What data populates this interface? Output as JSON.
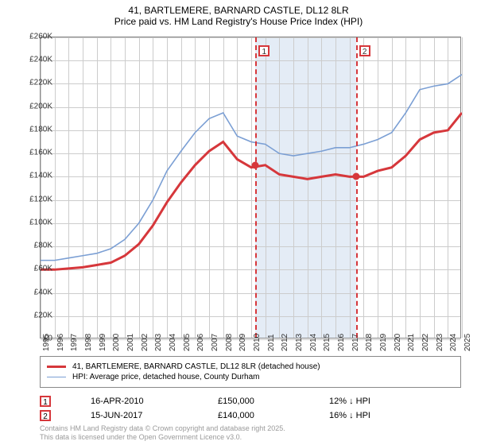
{
  "title_line1": "41, BARTLEMERE, BARNARD CASTLE, DL12 8LR",
  "title_line2": "Price paid vs. HM Land Registry's House Price Index (HPI)",
  "chart": {
    "type": "line",
    "background_color": "#ffffff",
    "grid_color": "#cccccc",
    "ylim": [
      0,
      260000
    ],
    "ytick_step": 20000,
    "ytick_labels": [
      "£0",
      "£20K",
      "£40K",
      "£60K",
      "£80K",
      "£100K",
      "£120K",
      "£140K",
      "£160K",
      "£180K",
      "£200K",
      "£220K",
      "£240K",
      "£260K"
    ],
    "x_years": [
      1995,
      1996,
      1997,
      1998,
      1999,
      2000,
      2001,
      2002,
      2003,
      2004,
      2005,
      2006,
      2007,
      2008,
      2009,
      2010,
      2011,
      2012,
      2013,
      2014,
      2015,
      2016,
      2017,
      2018,
      2019,
      2020,
      2021,
      2022,
      2023,
      2024,
      2025
    ],
    "series": [
      {
        "name": "41, BARTLEMERE, BARNARD CASTLE, DL12 8LR (detached house)",
        "color": "#d6373b",
        "line_width": 3,
        "values": [
          60000,
          60000,
          61000,
          62000,
          64000,
          66000,
          72000,
          82000,
          98000,
          118000,
          135000,
          150000,
          162000,
          170000,
          155000,
          148000,
          150000,
          142000,
          140000,
          138000,
          140000,
          142000,
          140000,
          140000,
          145000,
          148000,
          158000,
          172000,
          178000,
          180000,
          195000
        ]
      },
      {
        "name": "HPI: Average price, detached house, County Durham",
        "color": "#7b9fd4",
        "line_width": 1.6,
        "values": [
          68000,
          68000,
          70000,
          72000,
          74000,
          78000,
          86000,
          100000,
          120000,
          145000,
          162000,
          178000,
          190000,
          195000,
          175000,
          170000,
          168000,
          160000,
          158000,
          160000,
          162000,
          165000,
          165000,
          168000,
          172000,
          178000,
          195000,
          215000,
          218000,
          220000,
          228000
        ]
      }
    ],
    "marker_band": {
      "start_year": 2010.3,
      "end_year": 2017.45,
      "color": "#e4ecf6"
    },
    "sale_markers": [
      {
        "idx": "1",
        "year": 2010.3,
        "price": 150000
      },
      {
        "idx": "2",
        "year": 2017.45,
        "price": 140000
      }
    ]
  },
  "legend_property": "41, BARTLEMERE, BARNARD CASTLE, DL12 8LR (detached house)",
  "legend_hpi": "HPI: Average price, detached house, County Durham",
  "sales": [
    {
      "idx": "1",
      "date": "16-APR-2010",
      "price": "£150,000",
      "delta": "12% ↓ HPI"
    },
    {
      "idx": "2",
      "date": "15-JUN-2017",
      "price": "£140,000",
      "delta": "16% ↓ HPI"
    }
  ],
  "footer_line1": "Contains HM Land Registry data © Crown copyright and database right 2025.",
  "footer_line2": "This data is licensed under the Open Government Licence v3.0."
}
